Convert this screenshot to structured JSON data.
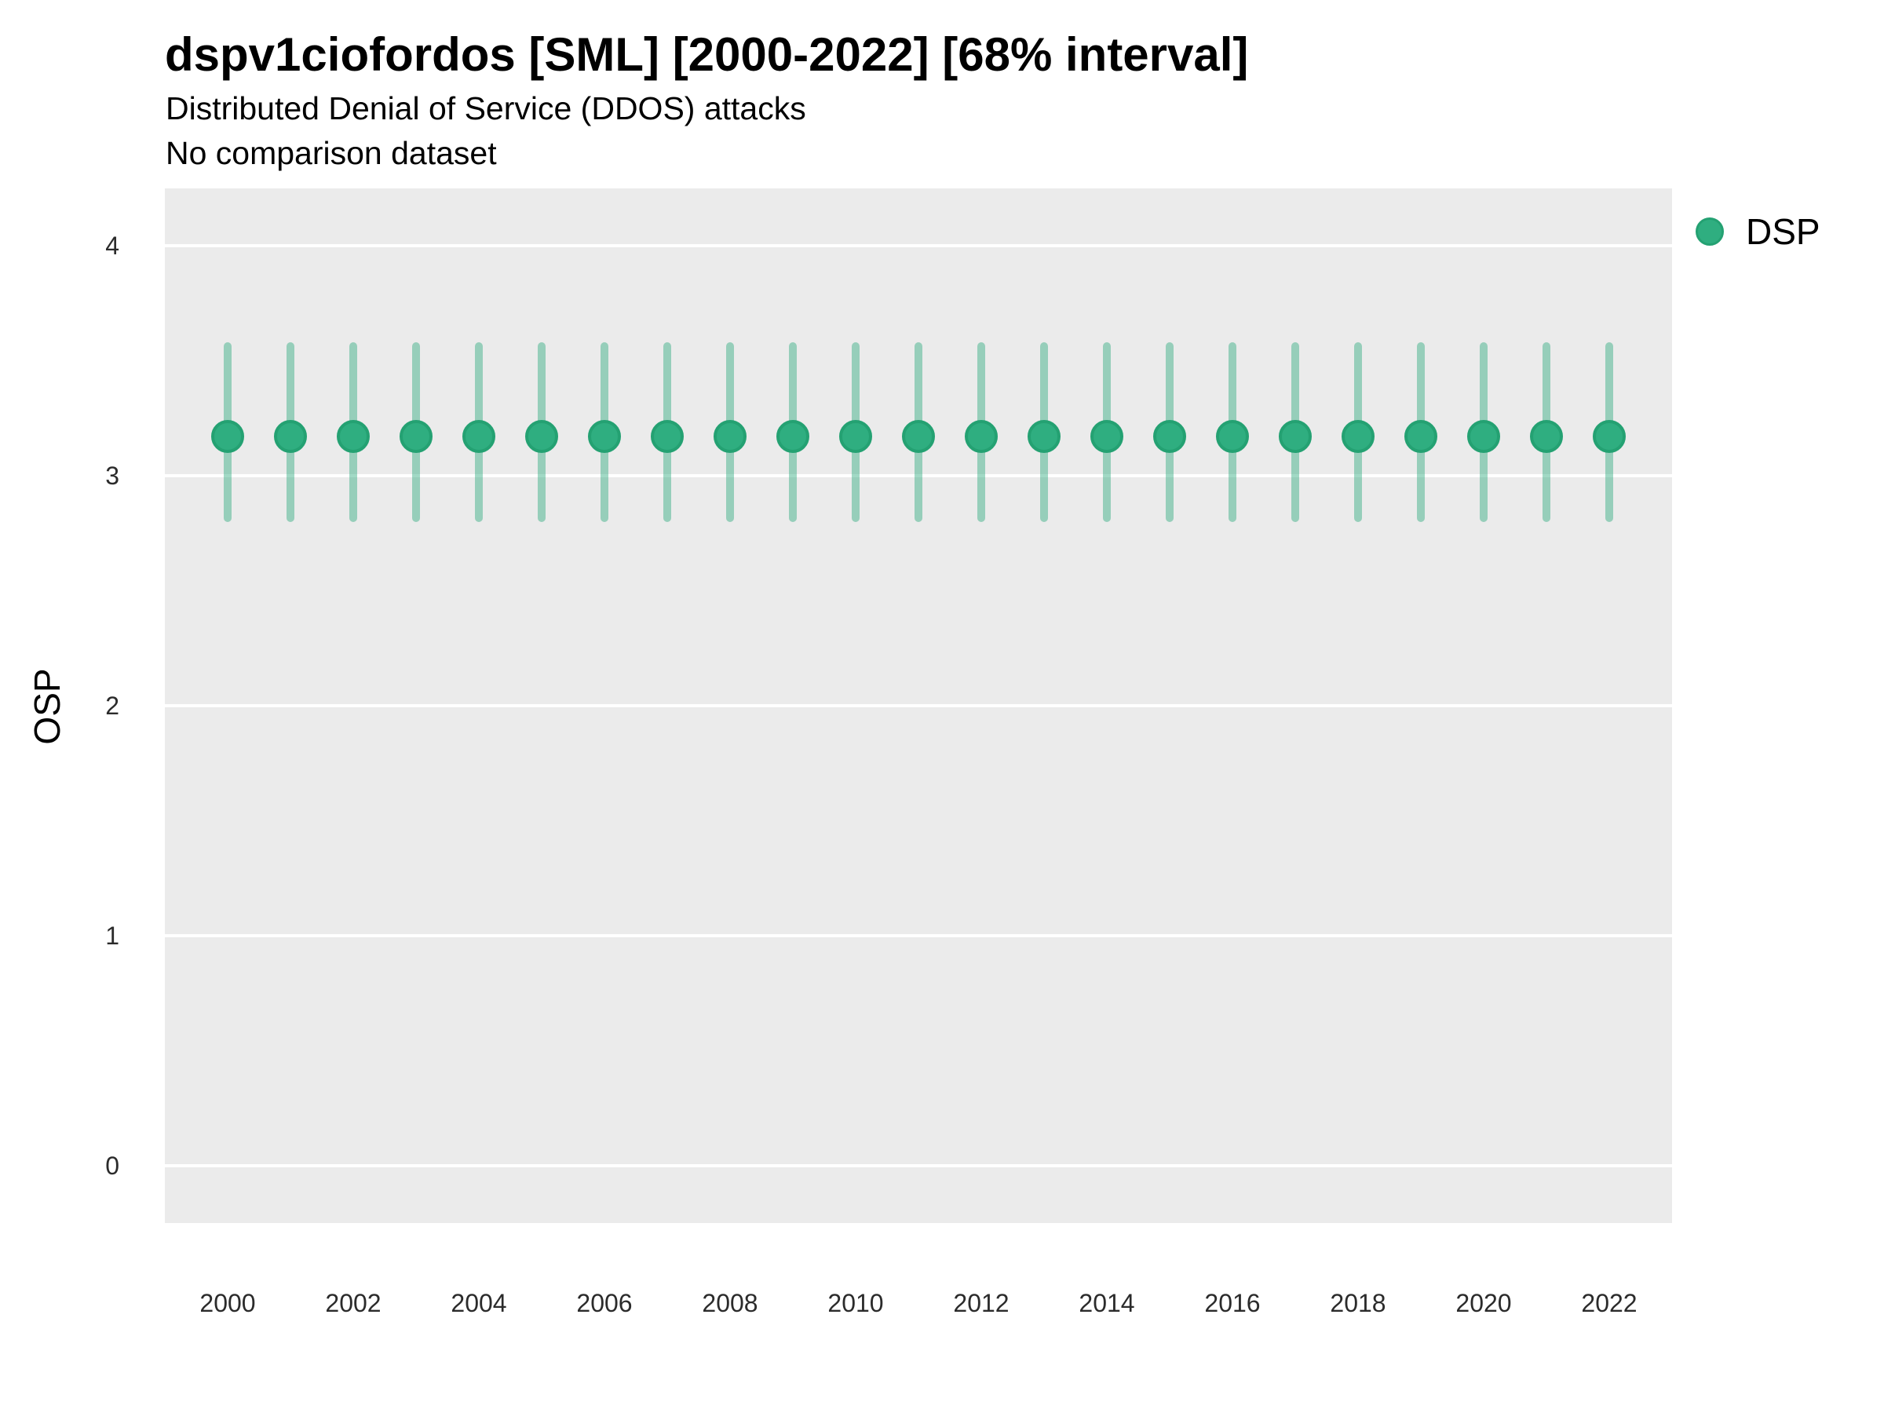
{
  "chart_data": {
    "type": "scatter",
    "variant": "pointrange-errorbar",
    "title": "dspv1ciofordos [SML] [2000-2022] [68% interval]",
    "subtitle": "Distributed Denial of Service (DDOS) attacks",
    "note": "No comparison dataset",
    "xlabel": "",
    "ylabel": "OSP",
    "ylim": [
      -0.25,
      4.25
    ],
    "yticks": [
      0,
      1,
      2,
      3,
      4
    ],
    "xticks": [
      2000,
      2002,
      2004,
      2006,
      2008,
      2010,
      2012,
      2014,
      2016,
      2018,
      2020,
      2022
    ],
    "x_range": [
      1999.0,
      2023.0
    ],
    "grid": "horizontal-major-only, white on gray panel",
    "legend_position": "right",
    "colors": {
      "point_fill": "#2FAE80",
      "point_stroke": "#24A172",
      "interval_bar": "rgba(46, 171, 127, 0.45)",
      "panel_background": "#EBEBEB",
      "gridline": "#FFFFFF",
      "tick_text": "#2b2b2b",
      "title_text": "#000000"
    },
    "series": [
      {
        "name": "DSP",
        "points": [
          {
            "year": 2000,
            "value": 3.17,
            "lower": 2.8,
            "upper": 3.58
          },
          {
            "year": 2001,
            "value": 3.17,
            "lower": 2.8,
            "upper": 3.58
          },
          {
            "year": 2002,
            "value": 3.17,
            "lower": 2.8,
            "upper": 3.58
          },
          {
            "year": 2003,
            "value": 3.17,
            "lower": 2.8,
            "upper": 3.58
          },
          {
            "year": 2004,
            "value": 3.17,
            "lower": 2.8,
            "upper": 3.58
          },
          {
            "year": 2005,
            "value": 3.17,
            "lower": 2.8,
            "upper": 3.58
          },
          {
            "year": 2006,
            "value": 3.17,
            "lower": 2.8,
            "upper": 3.58
          },
          {
            "year": 2007,
            "value": 3.17,
            "lower": 2.8,
            "upper": 3.58
          },
          {
            "year": 2008,
            "value": 3.17,
            "lower": 2.8,
            "upper": 3.58
          },
          {
            "year": 2009,
            "value": 3.17,
            "lower": 2.8,
            "upper": 3.58
          },
          {
            "year": 2010,
            "value": 3.17,
            "lower": 2.8,
            "upper": 3.58
          },
          {
            "year": 2011,
            "value": 3.17,
            "lower": 2.8,
            "upper": 3.58
          },
          {
            "year": 2012,
            "value": 3.17,
            "lower": 2.8,
            "upper": 3.58
          },
          {
            "year": 2013,
            "value": 3.17,
            "lower": 2.8,
            "upper": 3.58
          },
          {
            "year": 2014,
            "value": 3.17,
            "lower": 2.8,
            "upper": 3.58
          },
          {
            "year": 2015,
            "value": 3.17,
            "lower": 2.8,
            "upper": 3.58
          },
          {
            "year": 2016,
            "value": 3.17,
            "lower": 2.8,
            "upper": 3.58
          },
          {
            "year": 2017,
            "value": 3.17,
            "lower": 2.8,
            "upper": 3.58
          },
          {
            "year": 2018,
            "value": 3.17,
            "lower": 2.8,
            "upper": 3.58
          },
          {
            "year": 2019,
            "value": 3.17,
            "lower": 2.8,
            "upper": 3.58
          },
          {
            "year": 2020,
            "value": 3.17,
            "lower": 2.8,
            "upper": 3.58
          },
          {
            "year": 2021,
            "value": 3.17,
            "lower": 2.8,
            "upper": 3.58
          },
          {
            "year": 2022,
            "value": 3.17,
            "lower": 2.8,
            "upper": 3.58
          }
        ]
      }
    ],
    "legend": {
      "label": "DSP"
    }
  }
}
